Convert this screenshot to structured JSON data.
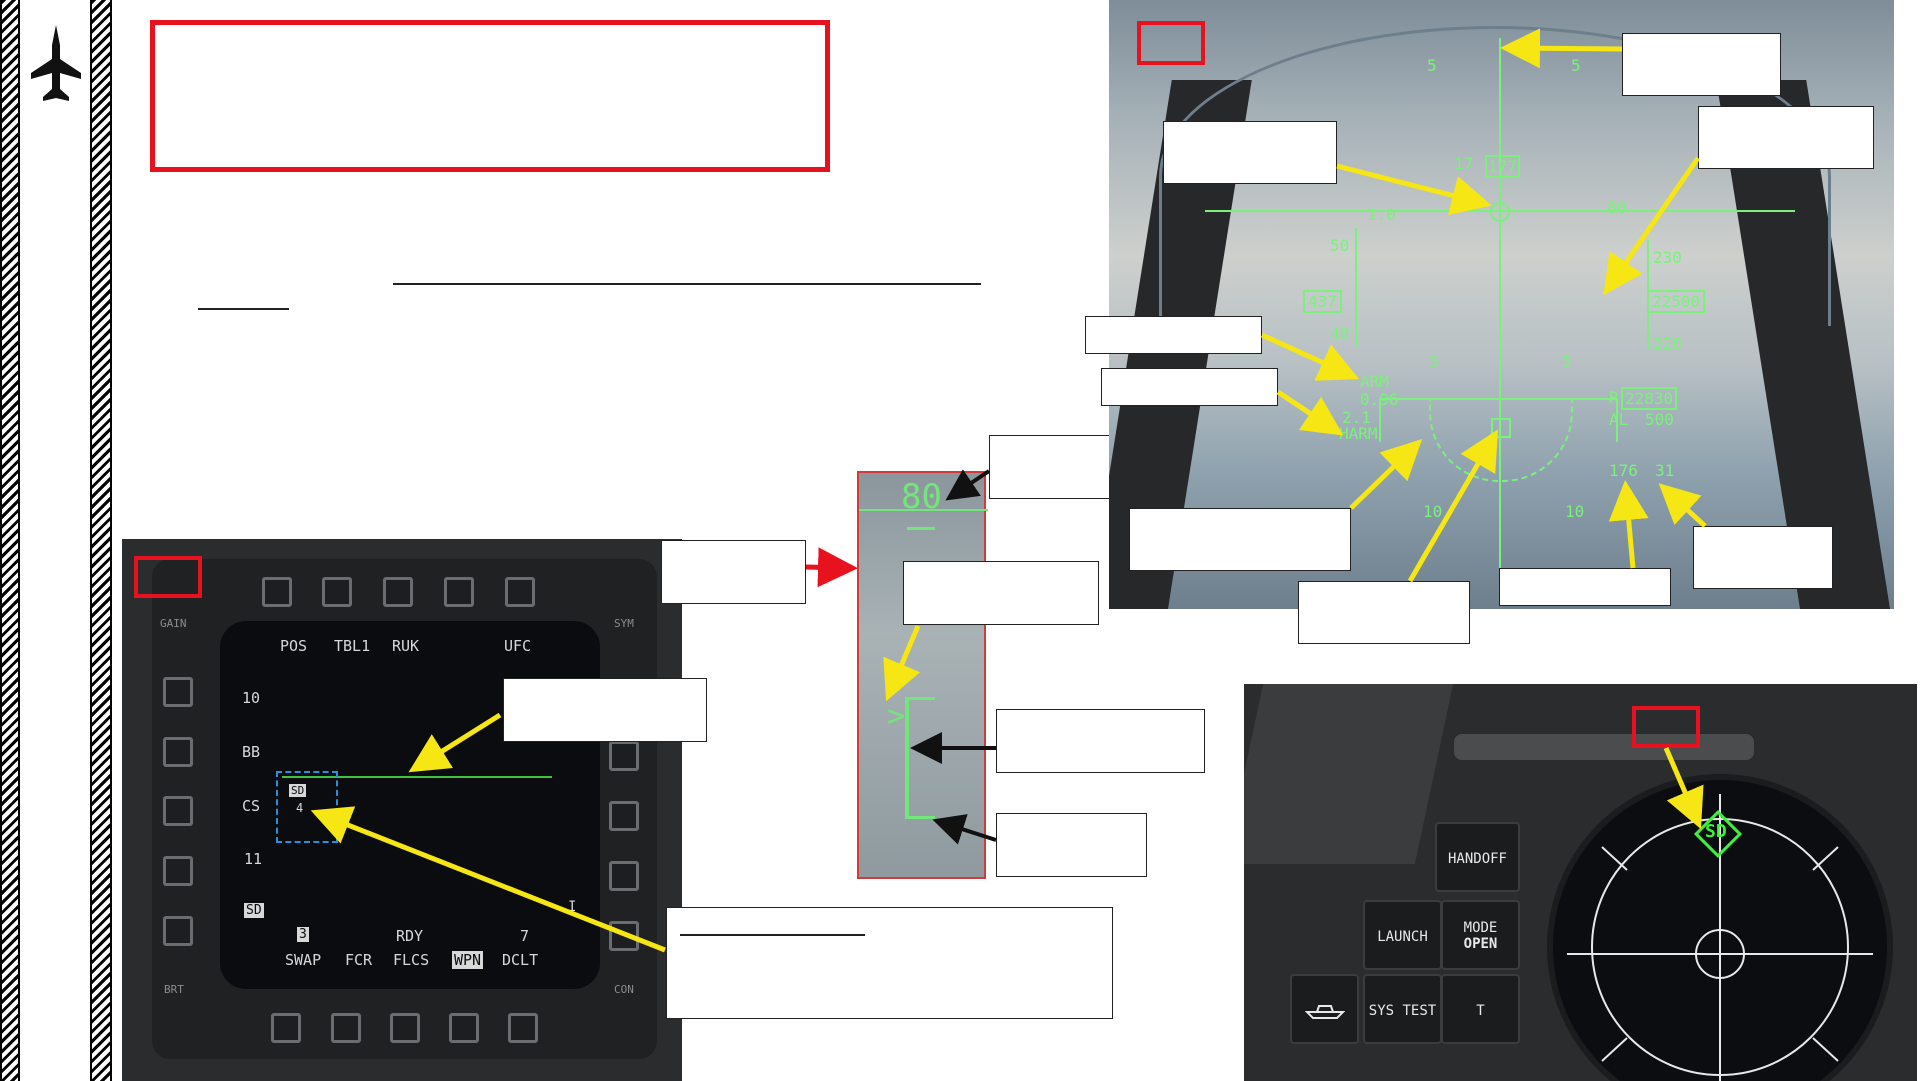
{
  "mfd": {
    "top_labels": [
      "POS",
      "TBL1",
      "RUK",
      "UFC"
    ],
    "left_labels": [
      "10",
      "BB",
      "CS",
      "11",
      "SD"
    ],
    "bottom_labels": [
      "SWAP",
      "FCR",
      "FLCS",
      "WPN",
      "DCLT"
    ],
    "bottom_top_labels": [
      "3",
      "RDY",
      "7"
    ],
    "symbol_label": "SD",
    "symbol_number": "4",
    "corner_labels": {
      "gain": "GAIN",
      "sym": "SYM",
      "brt": "BRT",
      "con": "CON"
    }
  },
  "hud": {
    "pitch_upper": "5",
    "pitch_mid": "10",
    "pitch_lower": "5",
    "pitch_bottom": "10",
    "speed_scale": [
      "50",
      "40"
    ],
    "speed_box": "437",
    "heading_numbers": [
      "17",
      "177"
    ],
    "alt_scale": [
      "230",
      "220"
    ],
    "alt_box": "22500",
    "mach_right": "80",
    "weapon_arm": "ARM",
    "weapon_mach": "0.96",
    "weapon_g": "2.1",
    "weapon_harm": "HARM",
    "range_box": "22830",
    "range_prefix": "R",
    "al_label": "AL",
    "al_value": "500",
    "bottom_num_1": "176",
    "bottom_num_2": "31"
  },
  "zoom": {
    "value": "80"
  },
  "rwr": {
    "buttons": [
      "HANDOFF",
      "LAUNCH",
      "MODE",
      "OPEN",
      "SYS TEST",
      "T"
    ],
    "symbol": "SD"
  },
  "colors": {
    "red": "#e8121f",
    "yellow": "#f5e614",
    "hud_green": "#7cf07c"
  },
  "icons": [
    "jet-icon",
    "ship-icon"
  ]
}
